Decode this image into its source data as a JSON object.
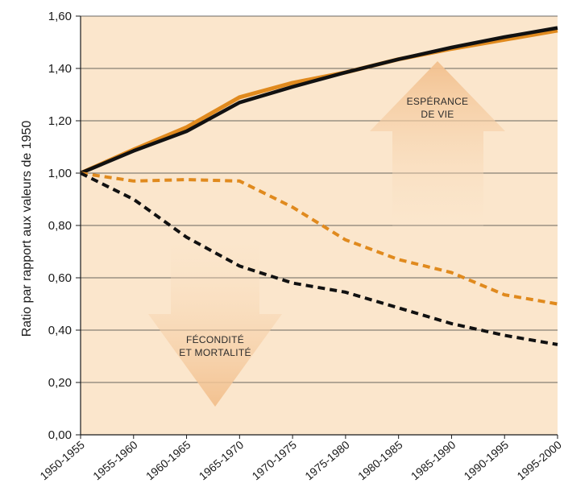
{
  "chart_data": {
    "type": "line",
    "ylabel": "Ratio par rapport aux valeurs de 1950",
    "xlabel": "",
    "ylim": [
      0,
      1.6
    ],
    "yticks": [
      "0,00",
      "0,20",
      "0,40",
      "0,60",
      "0,80",
      "1,00",
      "1,20",
      "1,40",
      "1,60"
    ],
    "categories": [
      "1950-1955",
      "1955-1960",
      "1960-1965",
      "1965-1970",
      "1970-1975",
      "1975-1980",
      "1980-1985",
      "1985-1990",
      "1990-1995",
      "1995-2000"
    ],
    "grid": true,
    "series": [
      {
        "color": "#e08a1e",
        "style": "solid",
        "values": [
          1.0,
          1.09,
          1.175,
          1.29,
          1.345,
          1.385,
          1.435,
          1.475,
          1.51,
          1.545
        ]
      },
      {
        "color": "#111111",
        "style": "solid",
        "values": [
          1.0,
          1.085,
          1.16,
          1.27,
          1.33,
          1.385,
          1.435,
          1.48,
          1.52,
          1.555
        ]
      },
      {
        "color": "#e08a1e",
        "style": "dashed",
        "values": [
          1.0,
          0.97,
          0.975,
          0.97,
          0.87,
          0.745,
          0.67,
          0.62,
          0.535,
          0.5
        ]
      },
      {
        "color": "#111111",
        "style": "dashed",
        "values": [
          1.0,
          0.9,
          0.755,
          0.645,
          0.58,
          0.545,
          0.485,
          0.425,
          0.38,
          0.345
        ]
      }
    ],
    "annotations": {
      "up_line1": "ESPÉRANCE",
      "up_line2": "DE VIE",
      "down_line1": "FÉCONDITÉ",
      "down_line2": "ET MORTALITÉ"
    },
    "colors": {
      "plot_bg": "#fbe6cc",
      "arrow_fill": "#f4c79a",
      "grid": "#3a3a3a"
    }
  }
}
